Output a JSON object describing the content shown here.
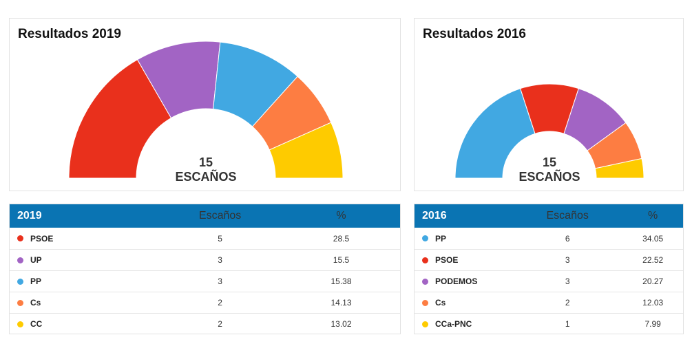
{
  "panels": {
    "title_2019": "Resultados 2019",
    "title_2016": "Resultados 2016"
  },
  "chart_data": [
    {
      "type": "pie",
      "title": "Resultados 2019",
      "center_label": [
        "15",
        "ESCAÑOS"
      ],
      "categories": [
        "PSOE",
        "UP",
        "PP",
        "Cs",
        "CC"
      ],
      "values": [
        5,
        3,
        3,
        2,
        2
      ],
      "colors": [
        "#e9301c",
        "#a264c4",
        "#41a8e2",
        "#fd7d42",
        "#fecb00"
      ]
    },
    {
      "type": "pie",
      "title": "Resultados 2016",
      "center_label": [
        "15",
        "ESCAÑOS"
      ],
      "categories": [
        "PP",
        "PSOE",
        "PODEMOS",
        "Cs",
        "CCa-PNC"
      ],
      "values": [
        6,
        3,
        3,
        2,
        1
      ],
      "colors": [
        "#41a8e2",
        "#e9301c",
        "#a264c4",
        "#fd7d42",
        "#fecb00"
      ]
    }
  ],
  "table_2019": {
    "header": {
      "year": "2019",
      "seats": "Escaños",
      "pct": "%"
    },
    "rows": [
      {
        "party": "PSOE",
        "seats": "5",
        "pct": "28.5",
        "color": "#e9301c"
      },
      {
        "party": "UP",
        "seats": "3",
        "pct": "15.5",
        "color": "#a264c4"
      },
      {
        "party": "PP",
        "seats": "3",
        "pct": "15.38",
        "color": "#41a8e2"
      },
      {
        "party": "Cs",
        "seats": "2",
        "pct": "14.13",
        "color": "#fd7d42"
      },
      {
        "party": "CC",
        "seats": "2",
        "pct": "13.02",
        "color": "#fecb00"
      }
    ]
  },
  "table_2016": {
    "header": {
      "year": "2016",
      "seats": "Escaños",
      "pct": "%"
    },
    "rows": [
      {
        "party": "PP",
        "seats": "6",
        "pct": "34.05",
        "color": "#41a8e2"
      },
      {
        "party": "PSOE",
        "seats": "3",
        "pct": "22.52",
        "color": "#e9301c"
      },
      {
        "party": "PODEMOS",
        "seats": "3",
        "pct": "20.27",
        "color": "#a264c4"
      },
      {
        "party": "Cs",
        "seats": "2",
        "pct": "12.03",
        "color": "#fd7d42"
      },
      {
        "party": "CCa-PNC",
        "seats": "1",
        "pct": "7.99",
        "color": "#fecb00"
      }
    ]
  }
}
